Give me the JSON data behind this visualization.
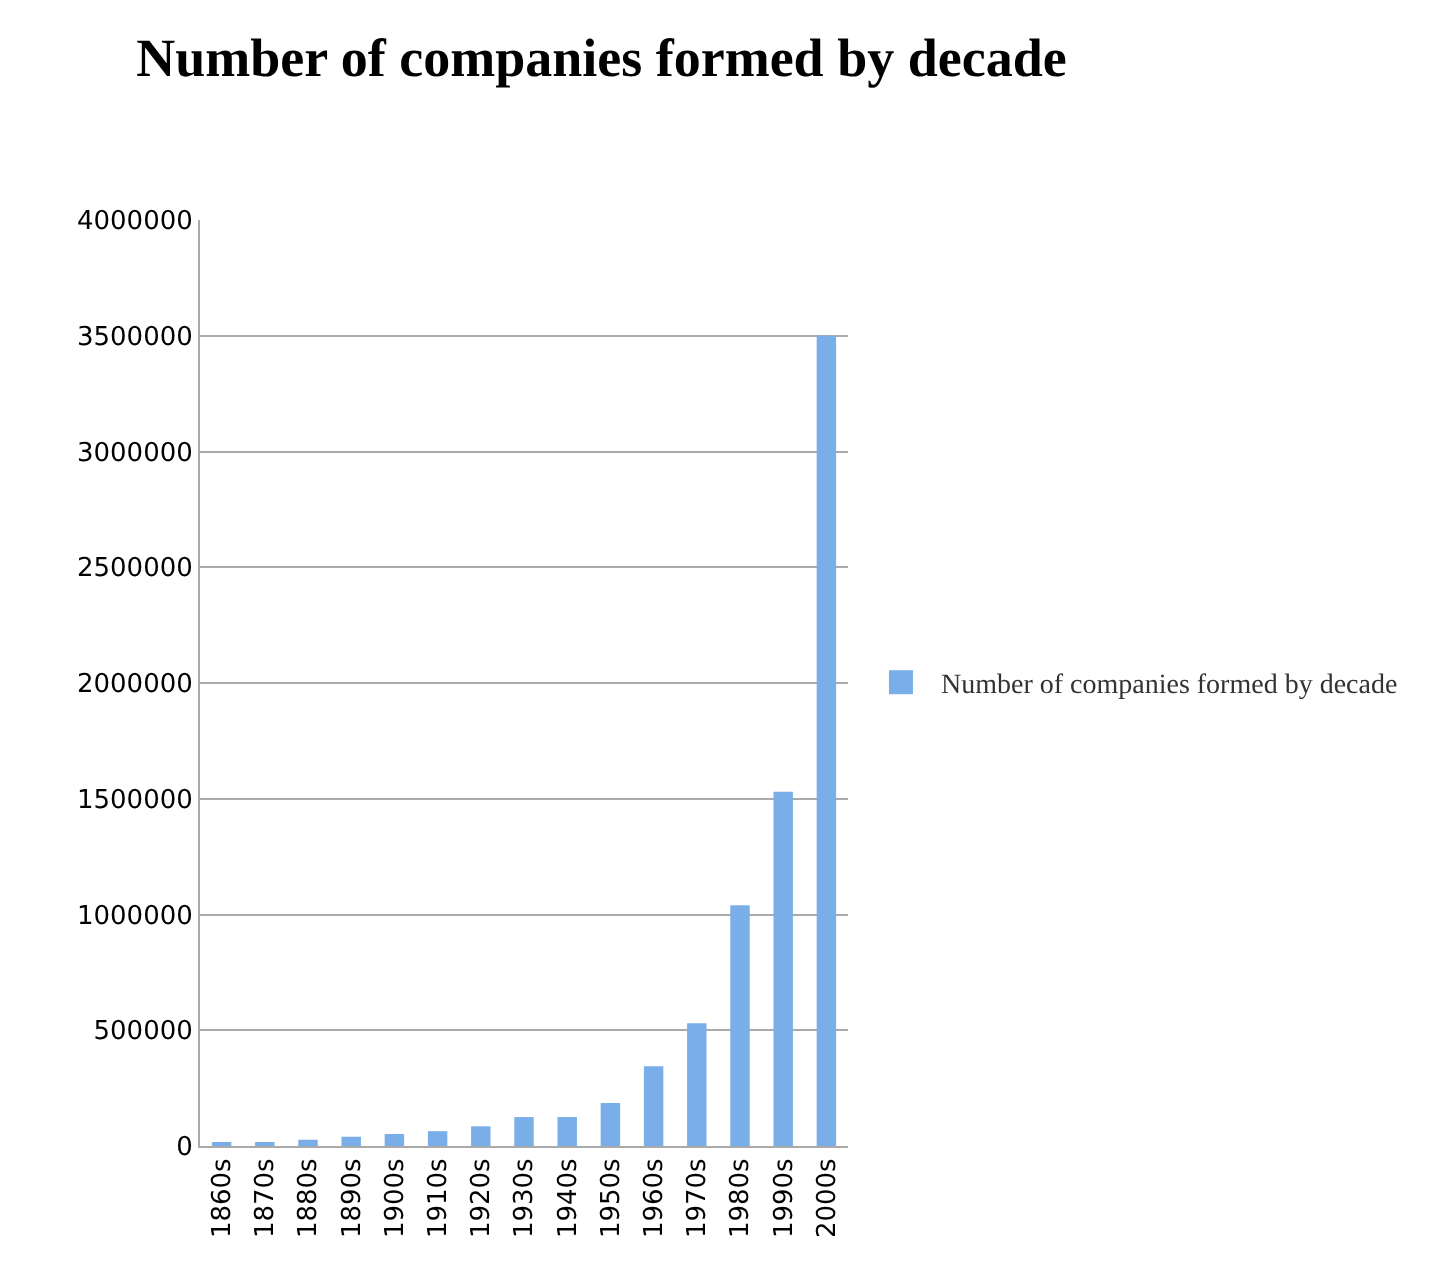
{
  "chart_data": {
    "type": "bar",
    "title": "Number of companies formed by decade",
    "categories": [
      "1860s",
      "1870s",
      "1880s",
      "1890s",
      "1900s",
      "1910s",
      "1920s",
      "1930s",
      "1940s",
      "1950s",
      "1960s",
      "1970s",
      "1980s",
      "1990s",
      "2000s"
    ],
    "series": [
      {
        "name": "Number of companies formed by decade",
        "color": "#7aaee8",
        "values": [
          15000,
          13000,
          27000,
          40000,
          52000,
          64000,
          85000,
          125000,
          125000,
          186000,
          345000,
          530000,
          1040000,
          1530000,
          3500000
        ]
      }
    ],
    "ylim": [
      0,
      4000000
    ],
    "yticks": [
      0,
      500000,
      1000000,
      1500000,
      2000000,
      2500000,
      3000000,
      3500000,
      4000000
    ],
    "grid": "y",
    "legend": "right"
  }
}
